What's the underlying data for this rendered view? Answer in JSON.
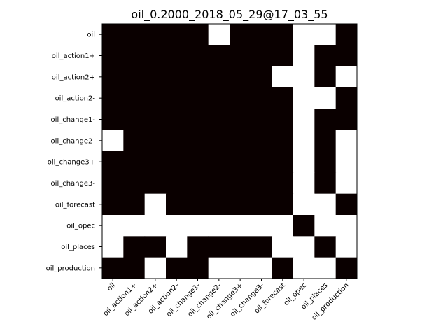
{
  "chart_data": {
    "type": "heatmap",
    "title": "oil_0.2000_2018_05_29@17_03_55",
    "xlabel": "",
    "ylabel": "",
    "labels": [
      "oil",
      "oil_action1+",
      "oil_action2+",
      "oil_action2-",
      "oil_change1-",
      "oil_change2-",
      "oil_change3+",
      "oil_change3-",
      "oil_forecast",
      "oil_opec",
      "oil_places",
      "oil_production"
    ],
    "colors": {
      "1": "#0a0000",
      "0": "#ffffff"
    },
    "legend": "none",
    "grid": false,
    "matrix": [
      [
        1,
        1,
        1,
        1,
        1,
        0,
        1,
        1,
        1,
        0,
        0,
        1
      ],
      [
        1,
        1,
        1,
        1,
        1,
        1,
        1,
        1,
        1,
        0,
        1,
        1
      ],
      [
        1,
        1,
        1,
        1,
        1,
        1,
        1,
        1,
        0,
        0,
        1,
        0
      ],
      [
        1,
        1,
        1,
        1,
        1,
        1,
        1,
        1,
        1,
        0,
        0,
        1
      ],
      [
        1,
        1,
        1,
        1,
        1,
        1,
        1,
        1,
        1,
        0,
        1,
        1
      ],
      [
        0,
        1,
        1,
        1,
        1,
        1,
        1,
        1,
        1,
        0,
        1,
        0
      ],
      [
        1,
        1,
        1,
        1,
        1,
        1,
        1,
        1,
        1,
        0,
        1,
        0
      ],
      [
        1,
        1,
        1,
        1,
        1,
        1,
        1,
        1,
        1,
        0,
        1,
        0
      ],
      [
        1,
        1,
        0,
        1,
        1,
        1,
        1,
        1,
        1,
        0,
        0,
        1
      ],
      [
        0,
        0,
        0,
        0,
        0,
        0,
        0,
        0,
        0,
        1,
        0,
        0
      ],
      [
        0,
        1,
        1,
        0,
        1,
        1,
        1,
        1,
        0,
        0,
        1,
        0
      ],
      [
        1,
        1,
        0,
        1,
        1,
        0,
        0,
        0,
        1,
        0,
        0,
        1
      ]
    ]
  }
}
